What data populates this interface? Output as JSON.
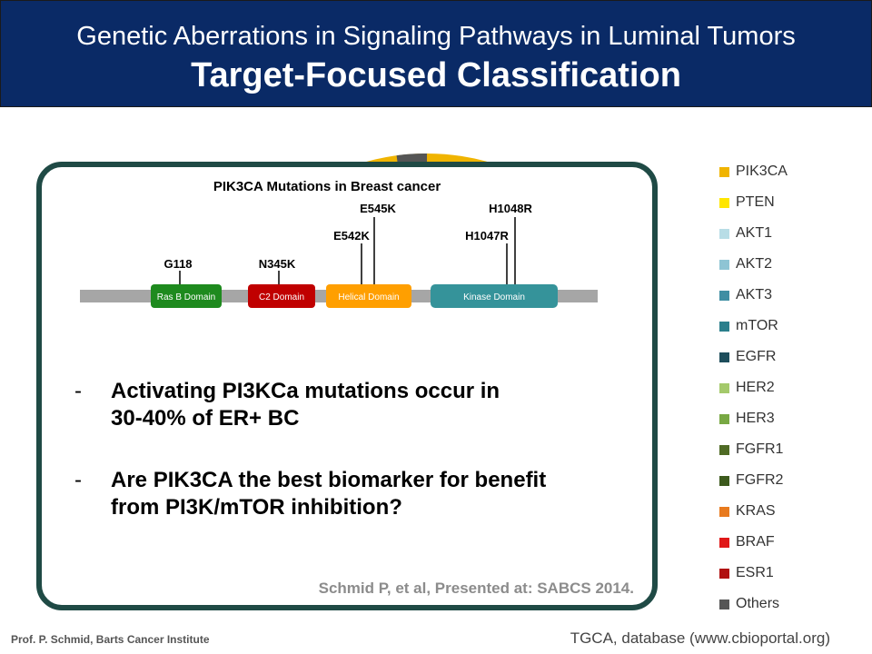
{
  "header": {
    "subtitle": "Genetic Aberrations in Signaling Pathways in Luminal Tumors",
    "title": "Target-Focused Classification"
  },
  "diagram": {
    "title": "PIK3CA Mutations in Breast cancer",
    "domains": [
      {
        "label": "Ras B Domain",
        "color": "#1e8a1e"
      },
      {
        "label": "C2 Domain",
        "color": "#c00000"
      },
      {
        "label": "Helical Domain",
        "color": "#ff9f00"
      },
      {
        "label": "Kinase Domain",
        "color": "#35939a"
      }
    ],
    "mutations": [
      "G118",
      "N345K",
      "E542K",
      "E545K",
      "H1047R",
      "H1048R"
    ]
  },
  "bullets": [
    {
      "dash": "-",
      "line1": "Activating PI3KCa mutations occur in",
      "line2": "30-40% of ER+ BC"
    },
    {
      "dash": "-",
      "line1": "Are PIK3CA the best biomarker for benefit",
      "line2": "from PI3K/mTOR inhibition?"
    }
  ],
  "citation": "Schmid P, et al, Presented at: SABCS 2014.",
  "legend": [
    {
      "label": "PIK3CA",
      "color": "#f0b400"
    },
    {
      "label": "PTEN",
      "color": "#ffe600"
    },
    {
      "label": "AKT1",
      "color": "#b8dde6"
    },
    {
      "label": "AKT2",
      "color": "#8ec4d4"
    },
    {
      "label": "AKT3",
      "color": "#3f8ea3"
    },
    {
      "label": "mTOR",
      "color": "#2b7f8c"
    },
    {
      "label": "EGFR",
      "color": "#1e4e5c"
    },
    {
      "label": "HER2",
      "color": "#a4c96b"
    },
    {
      "label": "HER3",
      "color": "#78a843"
    },
    {
      "label": "FGFR1",
      "color": "#4f6b25"
    },
    {
      "label": "FGFR2",
      "color": "#3d5a1d"
    },
    {
      "label": "KRAS",
      "color": "#e87a1e"
    },
    {
      "label": "BRAF",
      "color": "#e01818"
    },
    {
      "label": "ESR1",
      "color": "#b01010"
    },
    {
      "label": "Others",
      "color": "#555555"
    }
  ],
  "footer": {
    "left": "Prof. P. Schmid, Barts Cancer Institute",
    "right": "TGCA, database (www.cbioportal.org)"
  }
}
